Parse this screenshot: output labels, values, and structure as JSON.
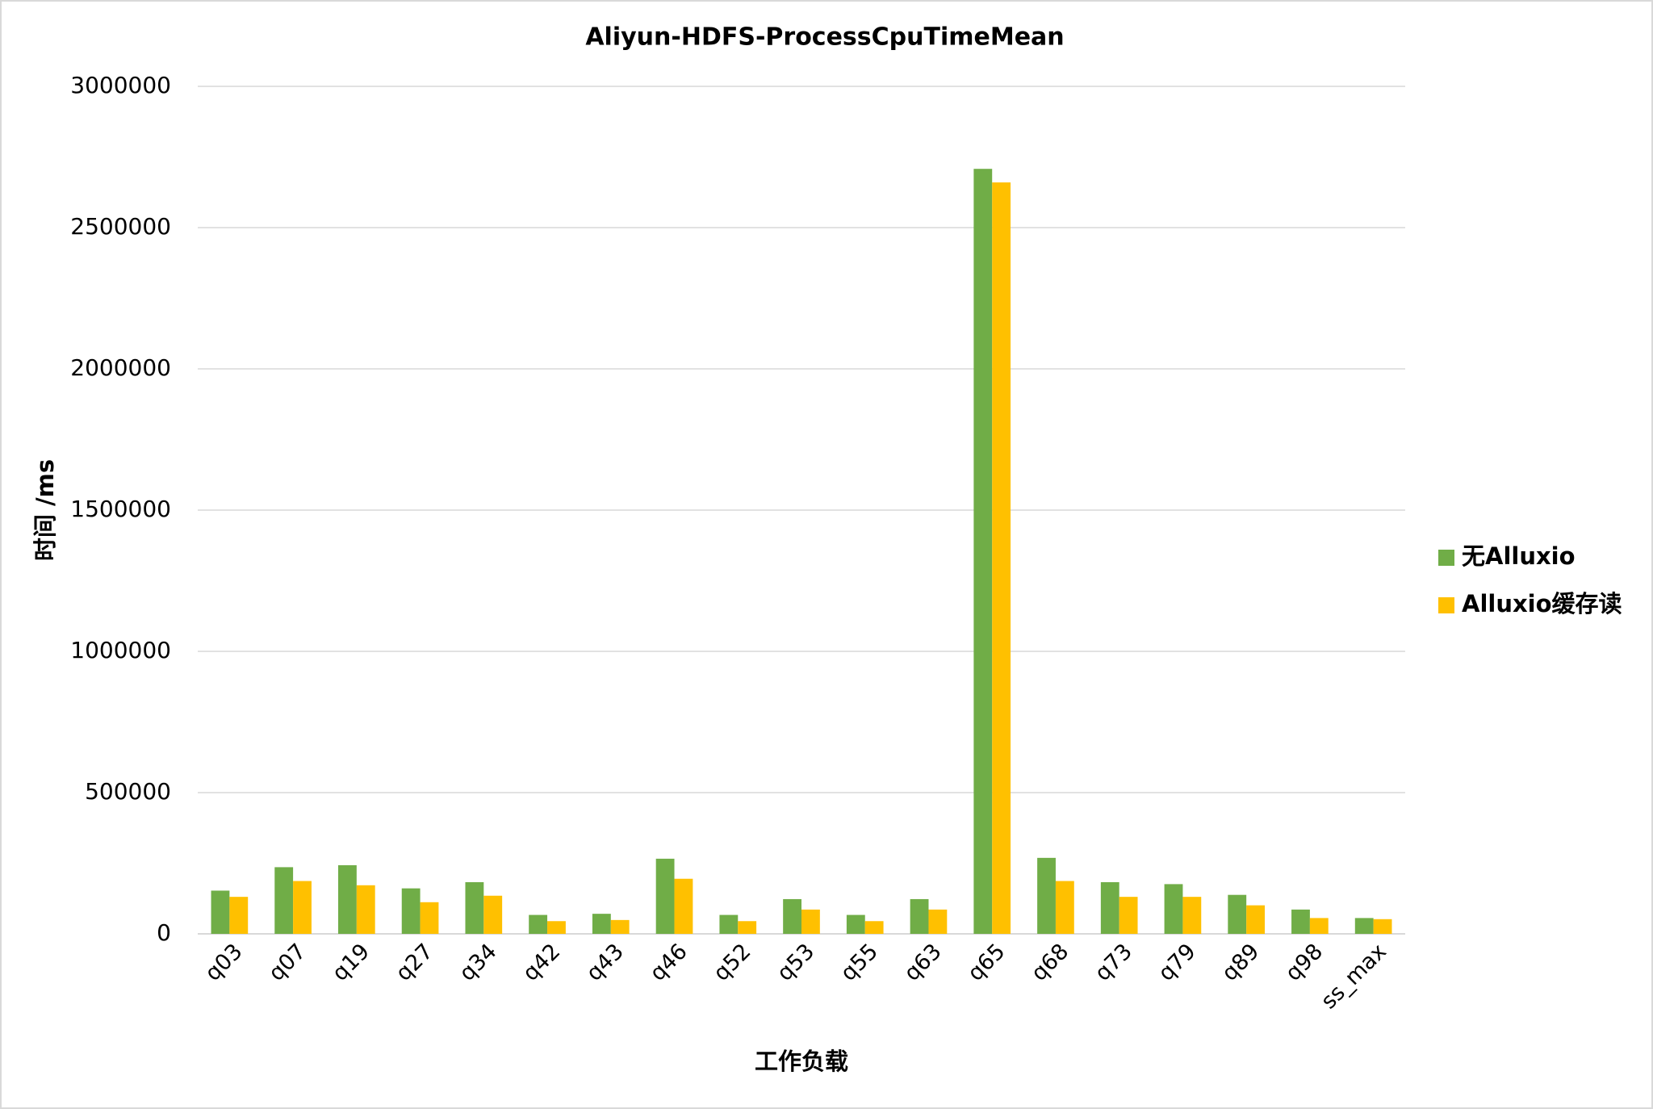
{
  "chart_data": {
    "type": "bar",
    "title": "Aliyun-HDFS-ProcessCpuTimeMean",
    "x_label": "工作负载",
    "y_label": "时间 /ms",
    "categories": [
      "q03",
      "q07",
      "q19",
      "q27",
      "q34",
      "q42",
      "q43",
      "q46",
      "q52",
      "q53",
      "q55",
      "q63",
      "q65",
      "q68",
      "q73",
      "q79",
      "q89",
      "q98",
      "ss_max"
    ],
    "series": [
      {
        "name": "无Alluxio",
        "color": "#70ad47",
        "values": [
          153000,
          236000,
          243000,
          161000,
          183000,
          67000,
          71000,
          266000,
          67000,
          123000,
          67000,
          123000,
          2708000,
          269000,
          183000,
          176000,
          138000,
          86000,
          56000
        ]
      },
      {
        "name": "Alluxio缓存读",
        "color": "#ffc000",
        "values": [
          131000,
          187000,
          172000,
          112000,
          135000,
          45000,
          49000,
          195000,
          45000,
          86000,
          45000,
          86000,
          2660000,
          187000,
          131000,
          131000,
          101000,
          56000,
          52000
        ]
      }
    ],
    "ylim": [
      0,
      3000000
    ],
    "yticks": [
      0,
      500000,
      1000000,
      1500000,
      2000000,
      2500000,
      3000000
    ],
    "grid": true,
    "legend": "right"
  }
}
